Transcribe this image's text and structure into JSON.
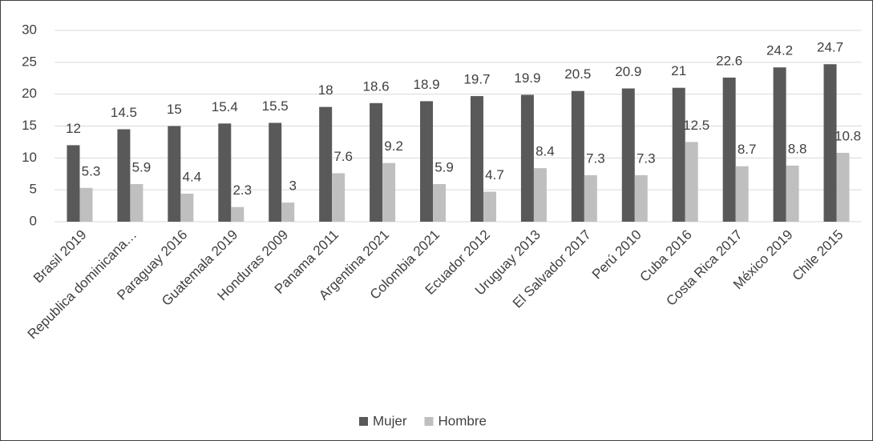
{
  "chart_data": {
    "type": "bar",
    "categories": [
      "Brasil 2019",
      "Republica dominicana…",
      "Paraguay 2016",
      "Guatemala 2019",
      "Honduras 2009",
      "Panama 2011",
      "Argentina 2021",
      "Colombia 2021",
      "Ecuador 2012",
      "Uruguay 2013",
      "El Salvador 2017",
      "Perú 2010",
      "Cuba 2016",
      "Costa Rica 2017",
      "México 2019",
      "Chile 2015"
    ],
    "series": [
      {
        "name": "Mujer",
        "color": "#595959",
        "values": [
          12,
          14.5,
          15,
          15.4,
          15.5,
          18,
          18.6,
          18.9,
          19.7,
          19.9,
          20.5,
          20.9,
          21,
          22.6,
          24.2,
          24.7
        ]
      },
      {
        "name": "Hombre",
        "color": "#bfbfbf",
        "values": [
          5.3,
          5.9,
          4.4,
          2.3,
          3,
          7.6,
          9.2,
          5.9,
          4.7,
          8.4,
          7.3,
          7.3,
          12.5,
          8.7,
          8.8,
          10.8
        ]
      }
    ],
    "ylim": [
      0,
      30
    ],
    "yticks": [
      0,
      5,
      10,
      15,
      20,
      25,
      30
    ],
    "grid": true,
    "legend": "bottom"
  }
}
